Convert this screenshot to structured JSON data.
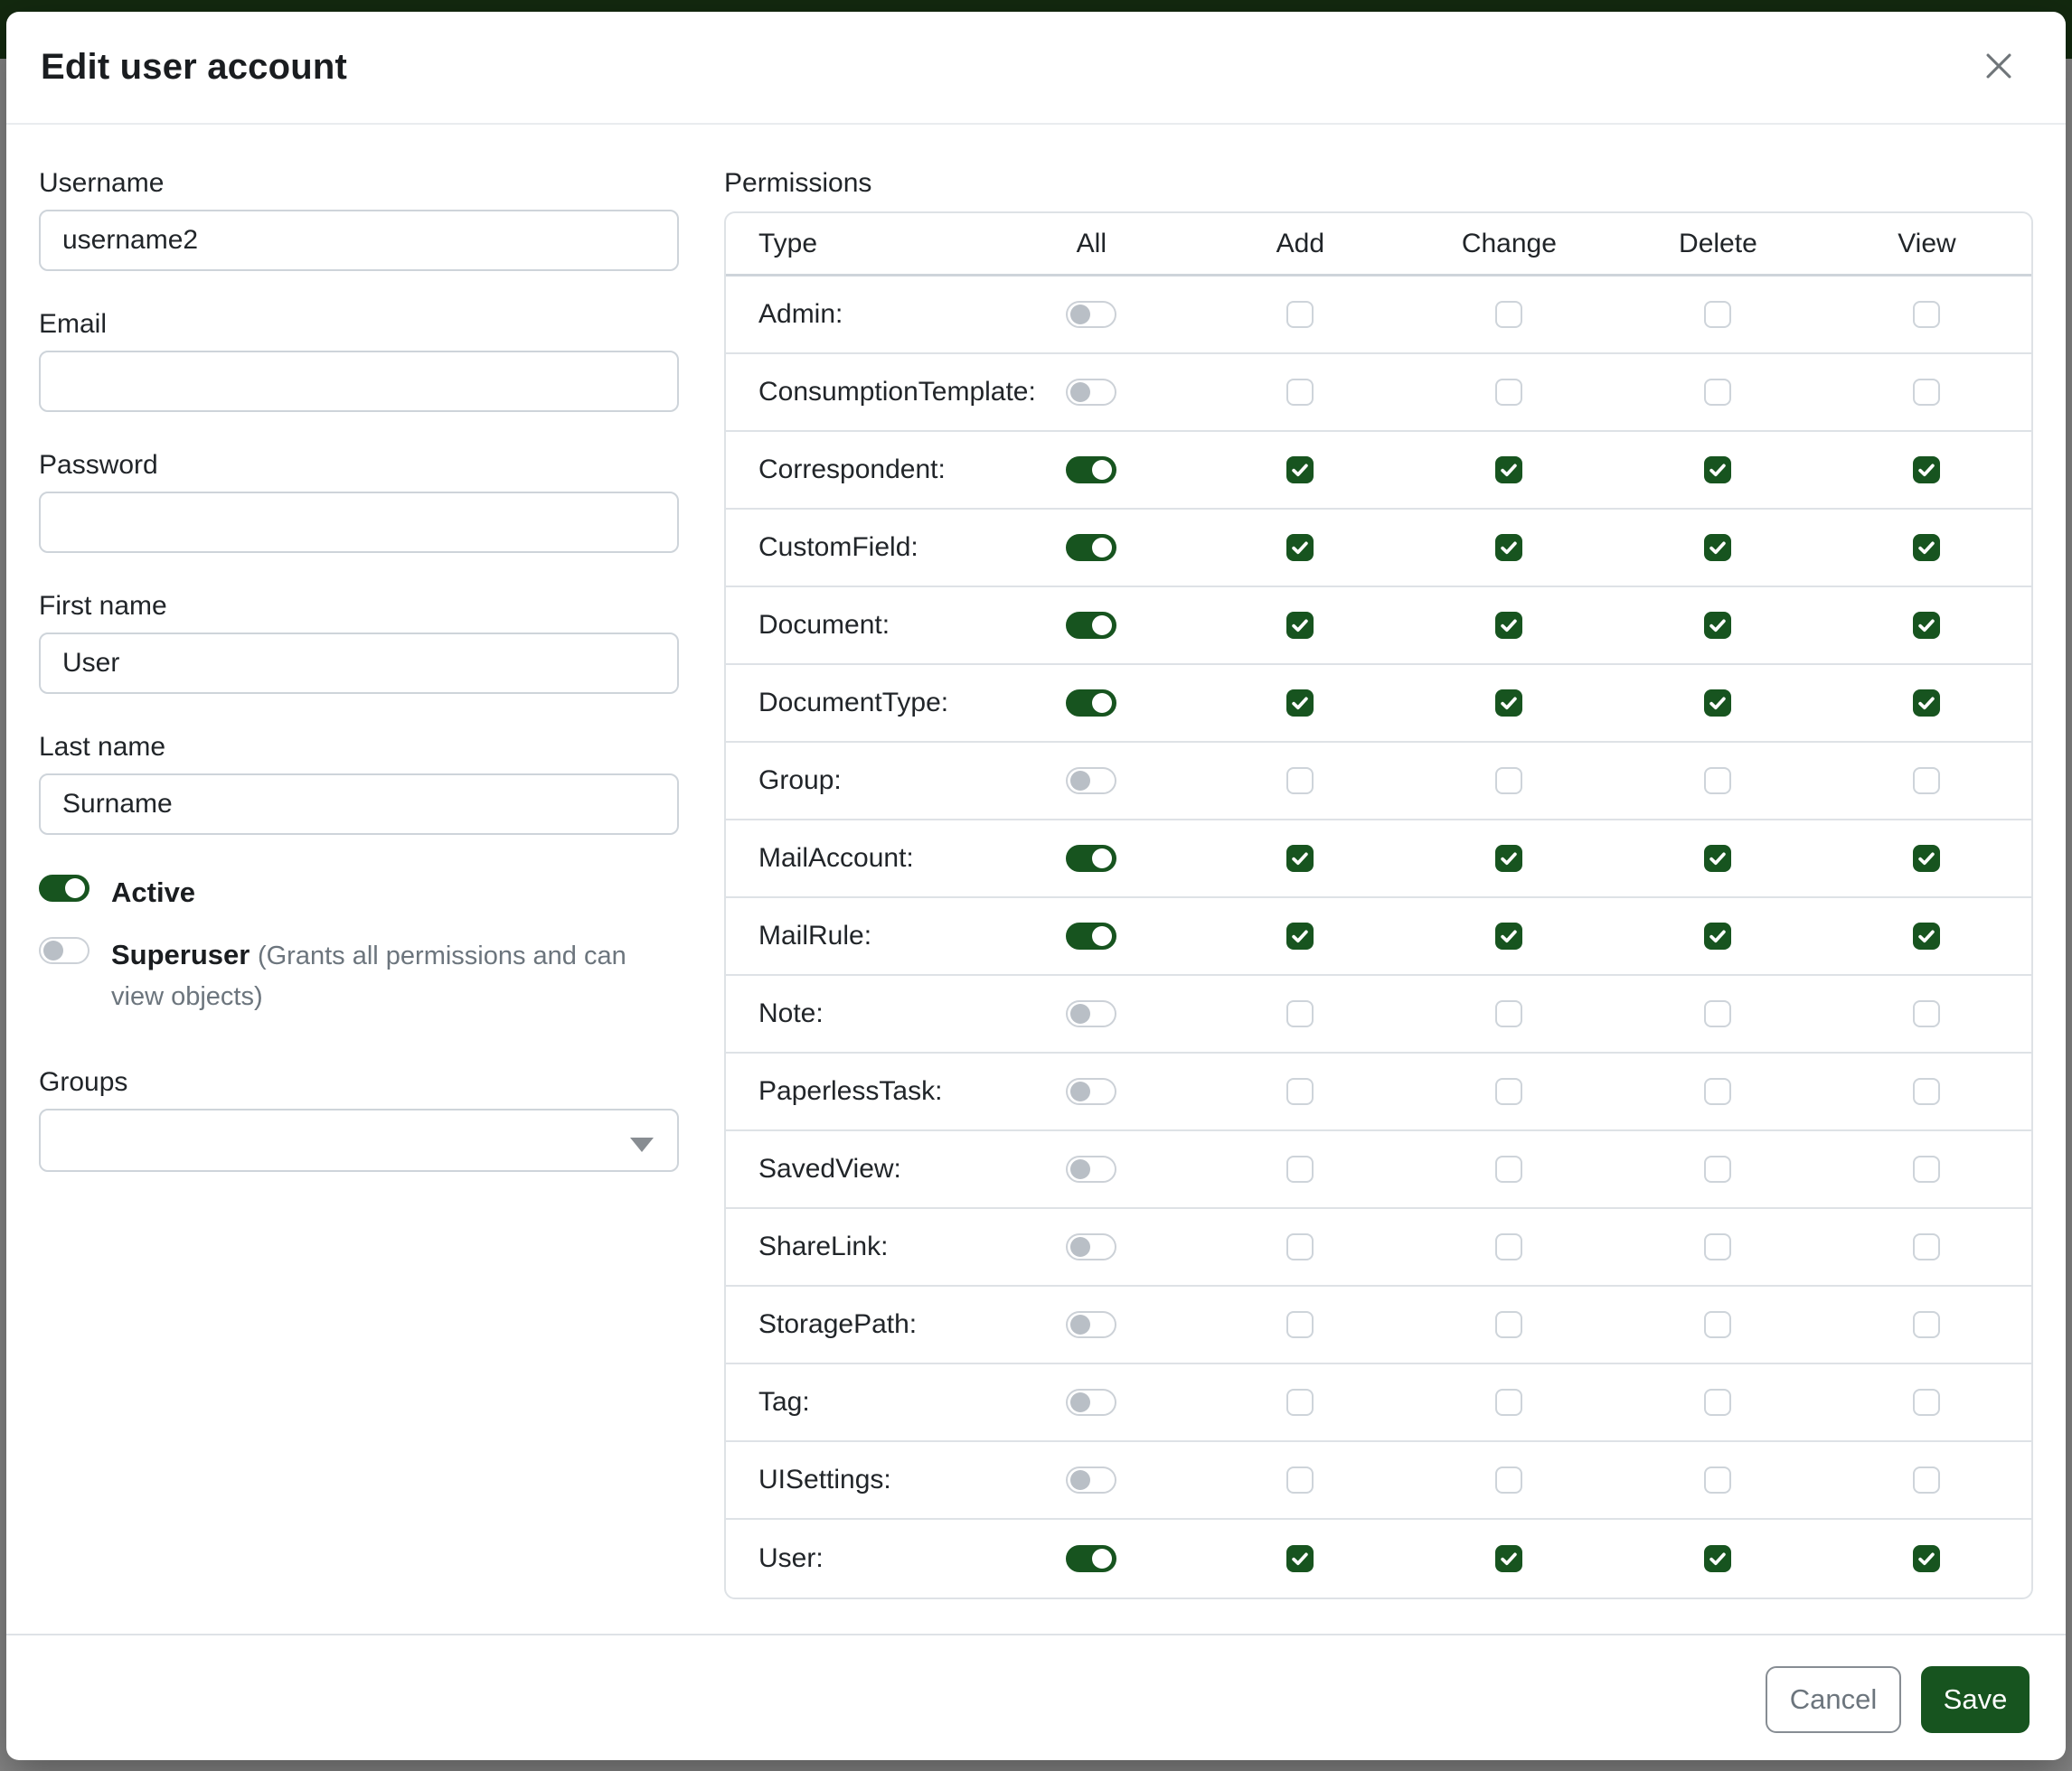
{
  "modal": {
    "title": "Edit user account"
  },
  "form": {
    "username": {
      "label": "Username",
      "value": "username2"
    },
    "email": {
      "label": "Email",
      "value": ""
    },
    "password": {
      "label": "Password",
      "value": ""
    },
    "first_name": {
      "label": "First name",
      "value": "User"
    },
    "last_name": {
      "label": "Last name",
      "value": "Surname"
    },
    "active": {
      "label": "Active",
      "checked": true
    },
    "superuser": {
      "label": "Superuser",
      "hint": "(Grants all permissions and can view objects)",
      "checked": false
    },
    "groups": {
      "label": "Groups",
      "value": ""
    }
  },
  "permissions": {
    "label": "Permissions",
    "columns": [
      "Type",
      "All",
      "Add",
      "Change",
      "Delete",
      "View"
    ],
    "rows": [
      {
        "type": "Admin:",
        "all": false,
        "add": false,
        "change": false,
        "delete": false,
        "view": false
      },
      {
        "type": "ConsumptionTemplate:",
        "all": false,
        "add": false,
        "change": false,
        "delete": false,
        "view": false
      },
      {
        "type": "Correspondent:",
        "all": true,
        "add": true,
        "change": true,
        "delete": true,
        "view": true
      },
      {
        "type": "CustomField:",
        "all": true,
        "add": true,
        "change": true,
        "delete": true,
        "view": true
      },
      {
        "type": "Document:",
        "all": true,
        "add": true,
        "change": true,
        "delete": true,
        "view": true
      },
      {
        "type": "DocumentType:",
        "all": true,
        "add": true,
        "change": true,
        "delete": true,
        "view": true
      },
      {
        "type": "Group:",
        "all": false,
        "add": false,
        "change": false,
        "delete": false,
        "view": false
      },
      {
        "type": "MailAccount:",
        "all": true,
        "add": true,
        "change": true,
        "delete": true,
        "view": true
      },
      {
        "type": "MailRule:",
        "all": true,
        "add": true,
        "change": true,
        "delete": true,
        "view": true
      },
      {
        "type": "Note:",
        "all": false,
        "add": false,
        "change": false,
        "delete": false,
        "view": false
      },
      {
        "type": "PaperlessTask:",
        "all": false,
        "add": false,
        "change": false,
        "delete": false,
        "view": false
      },
      {
        "type": "SavedView:",
        "all": false,
        "add": false,
        "change": false,
        "delete": false,
        "view": false
      },
      {
        "type": "ShareLink:",
        "all": false,
        "add": false,
        "change": false,
        "delete": false,
        "view": false
      },
      {
        "type": "StoragePath:",
        "all": false,
        "add": false,
        "change": false,
        "delete": false,
        "view": false
      },
      {
        "type": "Tag:",
        "all": false,
        "add": false,
        "change": false,
        "delete": false,
        "view": false
      },
      {
        "type": "UISettings:",
        "all": false,
        "add": false,
        "change": false,
        "delete": false,
        "view": false
      },
      {
        "type": "User:",
        "all": true,
        "add": true,
        "change": true,
        "delete": true,
        "view": true
      }
    ]
  },
  "footer": {
    "cancel_label": "Cancel",
    "save_label": "Save"
  },
  "colors": {
    "primary_green": "#17541f",
    "navbar_green": "#13290f",
    "backdrop_gray": "#868686",
    "border_gray": "#dee2e6"
  }
}
